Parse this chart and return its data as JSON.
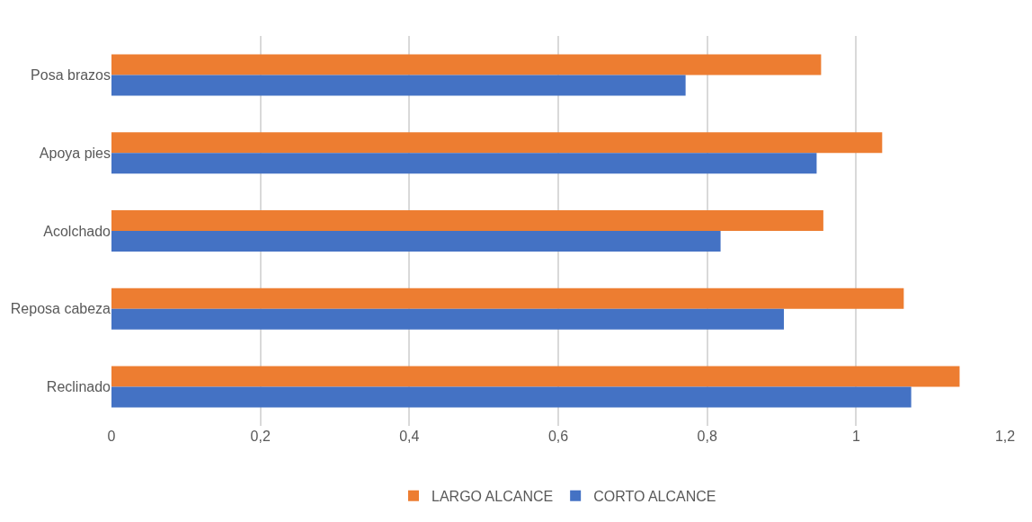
{
  "chart_data": {
    "type": "bar",
    "orientation": "horizontal",
    "categories": [
      "Posa brazos",
      "Apoya pies",
      "Acolchado",
      "Reposa cabeza",
      "Reclinado"
    ],
    "series": [
      {
        "name": "LARGO ALCANCE",
        "color": "#ed7d31",
        "values": [
          0.953,
          1.035,
          0.956,
          1.064,
          1.139
        ]
      },
      {
        "name": "CORTO ALCANCE",
        "color": "#4472c4",
        "values": [
          0.771,
          0.947,
          0.818,
          0.903,
          1.074
        ]
      }
    ],
    "xlim": [
      0,
      1.2
    ],
    "xticks": [
      0,
      {
        "value": 0.2,
        "label": "0,2"
      },
      {
        "value": 0.4,
        "label": "0,4"
      },
      {
        "value": 0.6,
        "label": "0,6"
      },
      {
        "value": 0.8,
        "label": "0,8"
      },
      1,
      {
        "value": 1.2,
        "label": "1,2"
      }
    ],
    "grid": "x",
    "legend": "bottom"
  }
}
